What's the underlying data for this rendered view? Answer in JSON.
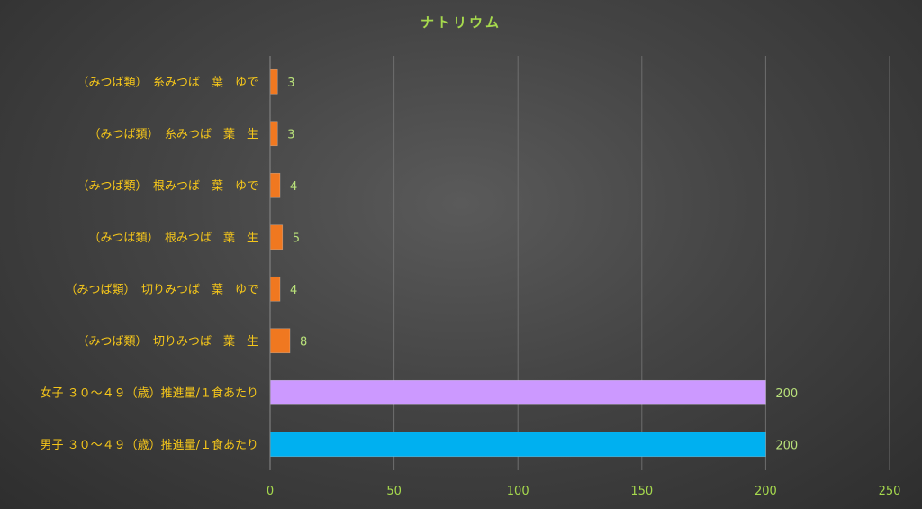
{
  "colors": {
    "title": "#a6d94d",
    "category_label": "#f5c61a",
    "tick_label": "#a6d94d",
    "data_label": "#b8e07a",
    "gridline": "#6e6e6e",
    "axis": "#8a8a8a",
    "mitsuba": "#f07820",
    "female": "#cc99ff",
    "male": "#00b0f0"
  },
  "chart_data": {
    "type": "bar",
    "orientation": "horizontal",
    "title": "ナトリウム",
    "xlabel": "",
    "ylabel": "",
    "xlim": [
      0,
      250
    ],
    "x_ticks": [
      0,
      50,
      100,
      150,
      200,
      250
    ],
    "grid": true,
    "legend": "none",
    "categories": [
      "（みつば類）　糸みつば　葉　ゆで",
      "（みつば類）　糸みつば　葉　生",
      "（みつば類）　根みつば　葉　ゆで",
      "（みつば類）　根みつば　葉　生",
      "（みつば類）　切りみつば　葉　ゆで",
      "（みつば類）　切りみつば　葉　生",
      "女子 ３０～４９（歳）推進量/１食あたり",
      "男子 ３０～４９（歳）推進量/１食あたり"
    ],
    "values": [
      3,
      3,
      4,
      5,
      4,
      8,
      200,
      200
    ],
    "bar_colors": [
      "#f07820",
      "#f07820",
      "#f07820",
      "#f07820",
      "#f07820",
      "#f07820",
      "#cc99ff",
      "#00b0f0"
    ],
    "data_labels": [
      "3",
      "3",
      "4",
      "5",
      "4",
      "8",
      "200",
      "200"
    ]
  }
}
